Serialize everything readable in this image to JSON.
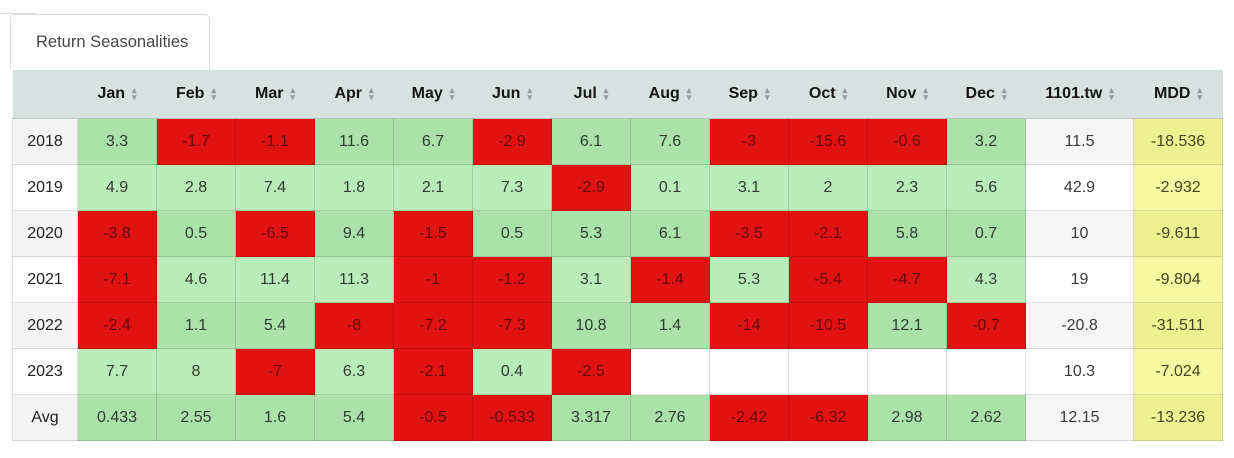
{
  "tab": {
    "label": "Return Seasonalities"
  },
  "colors": {
    "header_bg": "#d6e1e0",
    "positive": "#b9ecb8",
    "positive_striped": "#abe2aa",
    "negative": "#e01212",
    "mdd": "#f7f8a1",
    "mdd_striped": "#eff092"
  },
  "table": {
    "columns": [
      "Jan",
      "Feb",
      "Mar",
      "Apr",
      "May",
      "Jun",
      "Jul",
      "Aug",
      "Sep",
      "Oct",
      "Nov",
      "Dec",
      "1101.tw",
      "MDD"
    ],
    "sort_icons": {
      "asc": "▴",
      "desc": "▾"
    },
    "rows": [
      {
        "label": "2018",
        "months": [
          "3.3",
          "-1.7",
          "-1.1",
          "11.6",
          "6.7",
          "-2.9",
          "6.1",
          "7.6",
          "-3",
          "-15.6",
          "-0.6",
          "3.2"
        ],
        "return": "11.5",
        "mdd": "-18.536"
      },
      {
        "label": "2019",
        "months": [
          "4.9",
          "2.8",
          "7.4",
          "1.8",
          "2.1",
          "7.3",
          "-2.9",
          "0.1",
          "3.1",
          "2",
          "2.3",
          "5.6"
        ],
        "return": "42.9",
        "mdd": "-2.932"
      },
      {
        "label": "2020",
        "months": [
          "-3.8",
          "0.5",
          "-6.5",
          "9.4",
          "-1.5",
          "0.5",
          "5.3",
          "6.1",
          "-3.5",
          "-2.1",
          "5.8",
          "0.7"
        ],
        "return": "10",
        "mdd": "-9.611"
      },
      {
        "label": "2021",
        "months": [
          "-7.1",
          "4.6",
          "11.4",
          "11.3",
          "-1",
          "-1.2",
          "3.1",
          "-1.4",
          "5.3",
          "-5.4",
          "-4.7",
          "4.3"
        ],
        "return": "19",
        "mdd": "-9.804"
      },
      {
        "label": "2022",
        "months": [
          "-2.4",
          "1.1",
          "5.4",
          "-8",
          "-7.2",
          "-7.3",
          "10.8",
          "1.4",
          "-14",
          "-10.5",
          "12.1",
          "-0.7"
        ],
        "return": "-20.8",
        "mdd": "-31.511"
      },
      {
        "label": "2023",
        "months": [
          "7.7",
          "8",
          "-7",
          "6.3",
          "-2.1",
          "0.4",
          "-2.5",
          "",
          "",
          "",
          "",
          ""
        ],
        "return": "10.3",
        "mdd": "-7.024"
      },
      {
        "label": "Avg",
        "months": [
          "0.433",
          "2.55",
          "1.6",
          "5.4",
          "-0.5",
          "-0.533",
          "3.317",
          "2.76",
          "-2.42",
          "-6.32",
          "2.98",
          "2.62"
        ],
        "return": "12.15",
        "mdd": "-13.236"
      }
    ]
  }
}
